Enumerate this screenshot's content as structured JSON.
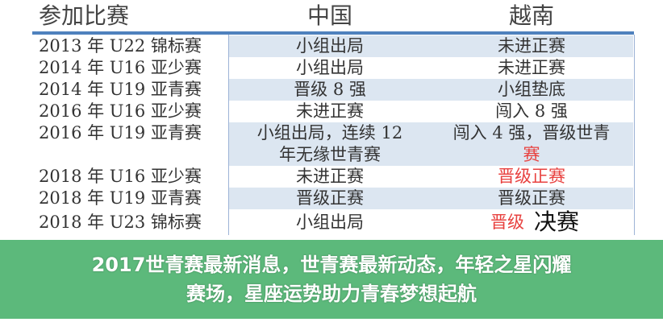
{
  "table": {
    "headers": [
      "参加比赛",
      "中国",
      "越南"
    ],
    "rows": [
      {
        "event": "2013 年 U22 锦标赛",
        "china": "小组出局",
        "vietnam": "未进正赛"
      },
      {
        "event": "2014 年 U16 亚少赛",
        "china": "小组出局",
        "vietnam": "未进正赛"
      },
      {
        "event": "2014 年 U19 亚青赛",
        "china": "晋级 8 强",
        "vietnam": "小组垫底"
      },
      {
        "event": "2016 年 U16 亚少赛",
        "china": "未进正赛",
        "vietnam": "闯入 8 强"
      },
      {
        "event": "2016 年 U19 亚青赛",
        "china": "小组出局，连续 12",
        "china_line2": "年无缘世青赛",
        "vietnam": "闯入 4 强，晋级世青",
        "vietnam_line2": "赛"
      },
      {
        "event": "2018 年 U16 亚少赛",
        "china": "未进正赛",
        "vietnam": "晋级正赛"
      },
      {
        "event": "2018 年 U19 亚青赛",
        "china": "晋级正赛",
        "vietnam": "晋级正赛"
      },
      {
        "event": "2018 年 U23 锦标赛",
        "china": "小组出局",
        "vietnam": "晋级"
      }
    ]
  },
  "banner": {
    "line1": "2017世青赛最新消息，世青赛最新动态，年轻之星闪耀",
    "line2": "赛场，星座运势助力青春梦想起航"
  },
  "overlay_text": "决赛",
  "colors": {
    "header_line": "#4f81bd",
    "row_alt": "#dce6f1",
    "highlight": "#e8413f",
    "banner": "#46af69"
  }
}
